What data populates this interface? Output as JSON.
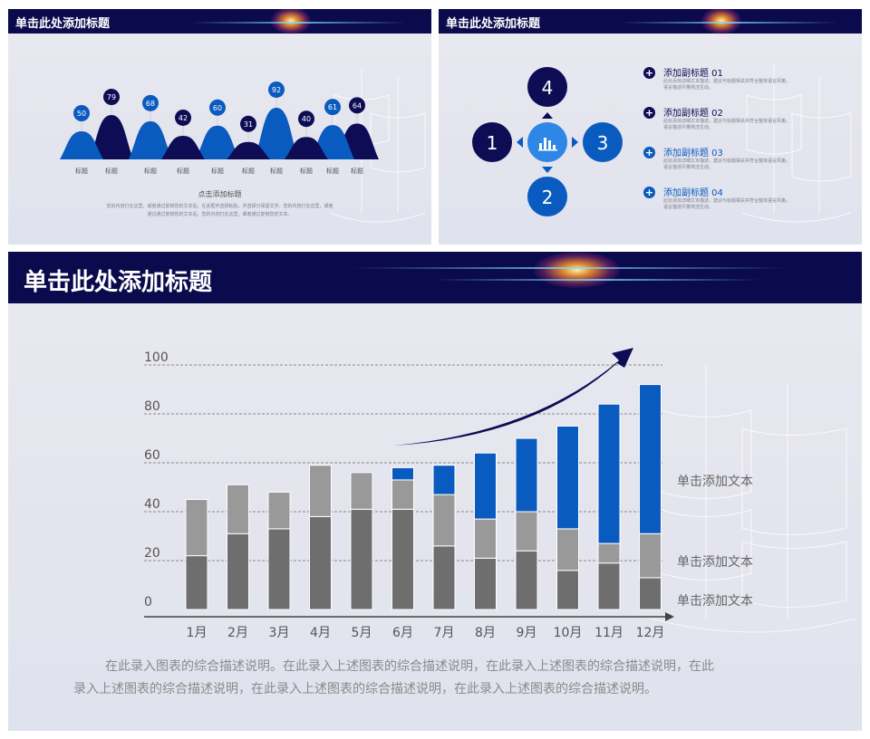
{
  "panel1": {
    "title": "单击此处添加标题",
    "bubbles": [
      50,
      79,
      68,
      42,
      60,
      31,
      92,
      40,
      61,
      64
    ],
    "labels": [
      "标题",
      "标题",
      "标题",
      "标题",
      "标题",
      "标题",
      "标题",
      "标题",
      "标题",
      "标题"
    ],
    "subtitle": "点击添加标题",
    "desc1": "您的内容打在这里，或者通过复制您的文本后，在此框中选择粘贴，并选择只保留文字。您的内容打在这里，或者",
    "desc2": "通过通过复制您的文本后，您的内容打在这里，或者通过复制您的文本。"
  },
  "panel2": {
    "title": "单击此处添加标题",
    "numbers": [
      "1",
      "2",
      "3",
      "4"
    ],
    "items": [
      {
        "title": "添加副标题 01",
        "line1": "此处添加详细文本描述，建议与标题相关并符合整体语言风格，",
        "line2": "语言描述尽量简洁生动。"
      },
      {
        "title": "添加副标题 02",
        "line1": "此处添加详细文本描述，建议与标题相关并符合整体语言风格，",
        "line2": "语言描述尽量简洁生动。"
      },
      {
        "title": "添加副标题 03",
        "line1": "此处添加详细文本描述，建议与标题相关并符合整体语言风格，",
        "line2": "语言描述尽量简洁生动。"
      },
      {
        "title": "添加副标题 04",
        "line1": "此处添加详细文本描述，建议与标题相关并符合整体语言风格，",
        "line2": "语言描述尽量简洁生动。"
      }
    ]
  },
  "panel3": {
    "title": "单击此处添加标题",
    "annotations": [
      "单击添加文本",
      "单击添加文本",
      "单击添加文本"
    ],
    "description_line1": "在此录入图表的综合描述说明。在此录入上述图表的综合描述说明，在此录入上述图表的综合描述说明，在此",
    "description_line2": "录入上述图表的综合描述说明，在此录入上述图表的综合描述说明，在此录入上述图表的综合描述说明。"
  },
  "colors": {
    "header": "#0b0a4d",
    "navy": "#0e0c55",
    "blue": "#0a5bbf",
    "gray_dark": "#6e6e6e",
    "gray_light": "#999999"
  },
  "chart_data": [
    {
      "type": "bar",
      "stacked": true,
      "categories": [
        "1月",
        "2月",
        "3月",
        "4月",
        "5月",
        "6月",
        "7月",
        "8月",
        "9月",
        "10月",
        "11月",
        "12月"
      ],
      "series": [
        {
          "values": [
            22,
            31,
            33,
            38,
            41,
            41,
            26,
            21,
            24,
            16,
            19,
            13
          ]
        },
        {
          "values": [
            23,
            20,
            15,
            21,
            15,
            12,
            21,
            16,
            16,
            17,
            8,
            18
          ]
        },
        {
          "values": [
            0,
            0,
            0,
            0,
            0,
            5,
            12,
            27,
            30,
            42,
            57,
            61
          ]
        }
      ],
      "yticks": [
        0,
        20,
        40,
        60,
        80,
        100
      ],
      "ylim": [
        0,
        100
      ],
      "grid": true
    },
    {
      "type": "area",
      "categories": [
        "标题",
        "标题",
        "标题",
        "标题",
        "标题",
        "标题",
        "标题",
        "标题",
        "标题",
        "标题"
      ],
      "values": [
        50,
        79,
        68,
        42,
        60,
        31,
        92,
        40,
        61,
        64
      ]
    }
  ]
}
